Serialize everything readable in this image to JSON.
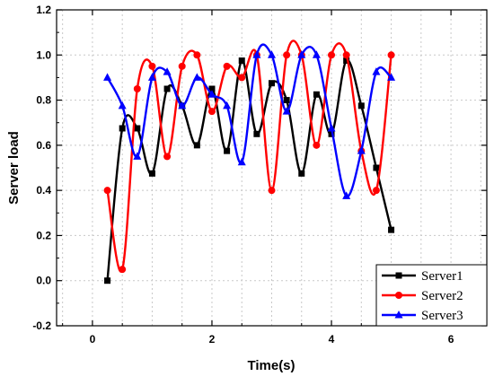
{
  "chart_data": {
    "type": "line",
    "title": "",
    "xlabel": "Time(s)",
    "ylabel": "Server load",
    "xlim": [
      -0.6,
      6.6
    ],
    "ylim": [
      -0.2,
      1.2
    ],
    "xticks": [
      0,
      2,
      4,
      6
    ],
    "yticks": [
      -0.2,
      0.0,
      0.2,
      0.4,
      0.6,
      0.8,
      1.0,
      1.2
    ],
    "xtick_labels": [
      "0",
      "2",
      "4",
      "6"
    ],
    "ytick_labels": [
      "-0.2",
      "0.0",
      "0.2",
      "0.4",
      "0.6",
      "0.8",
      "1.0",
      "1.2"
    ],
    "grid": true,
    "legend_position": "bottom-right",
    "smooth": true,
    "x": [
      0.25,
      0.5,
      0.75,
      1.0,
      1.25,
      1.5,
      1.75,
      2.0,
      2.25,
      2.5,
      2.75,
      3.0,
      3.25,
      3.5,
      3.75,
      4.0,
      4.25,
      4.5,
      4.75,
      5.0
    ],
    "series": [
      {
        "name": "Server1",
        "color": "#000000",
        "marker": "square",
        "values": [
          0.0,
          0.675,
          0.675,
          0.475,
          0.85,
          0.775,
          0.6,
          0.85,
          0.575,
          0.975,
          0.65,
          0.875,
          0.8,
          0.475,
          0.825,
          0.65,
          0.975,
          0.775,
          0.5,
          0.225
        ]
      },
      {
        "name": "Server2",
        "color": "#ff0000",
        "marker": "circle",
        "values": [
          0.4,
          0.05,
          0.85,
          0.95,
          0.55,
          0.95,
          1.0,
          0.75,
          0.95,
          0.9,
          1.0,
          0.4,
          1.0,
          1.0,
          0.6,
          1.0,
          1.0,
          0.575,
          0.4,
          1.0
        ]
      },
      {
        "name": "Server3",
        "color": "#0000ff",
        "marker": "triangle",
        "values": [
          0.9,
          0.775,
          0.55,
          0.9,
          0.925,
          0.775,
          0.9,
          0.825,
          0.775,
          0.525,
          1.0,
          1.0,
          0.75,
          1.0,
          1.0,
          0.675,
          0.375,
          0.575,
          0.925,
          0.9
        ]
      }
    ]
  }
}
